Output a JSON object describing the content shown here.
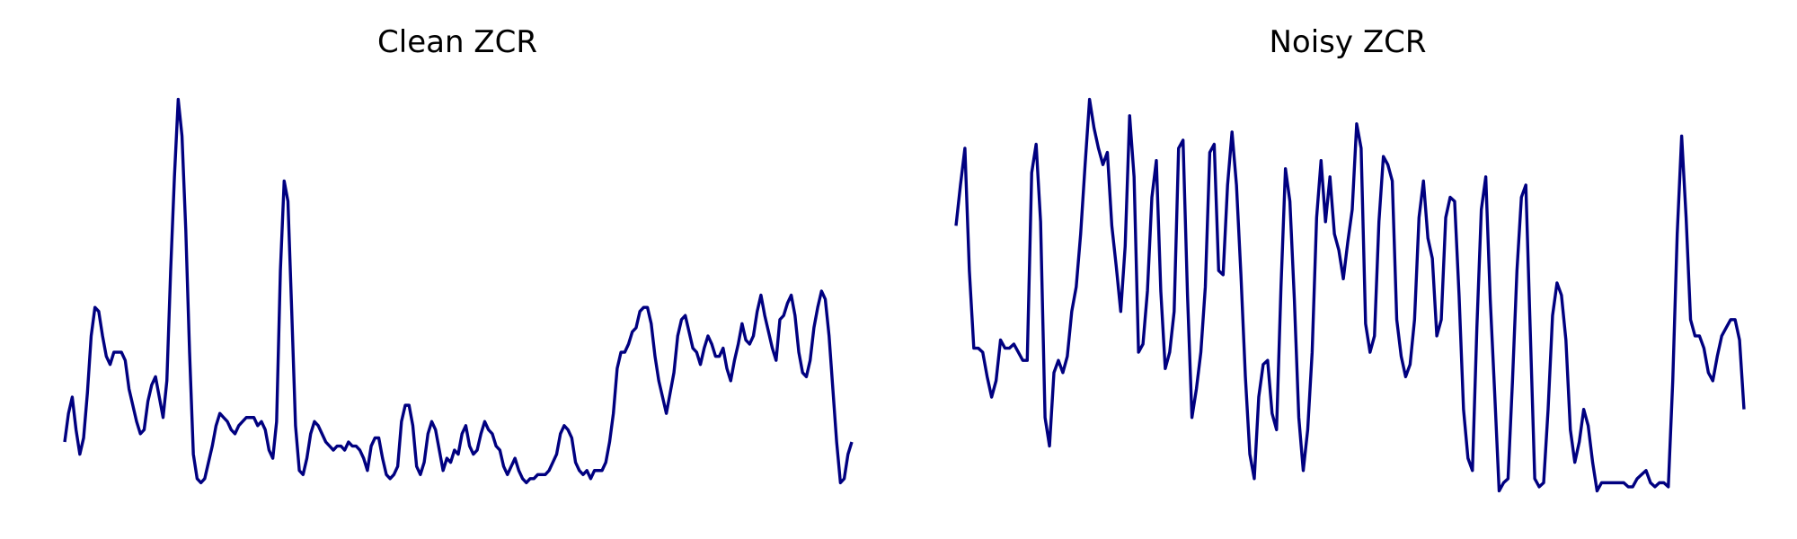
{
  "figure": {
    "panels": [
      {
        "title": "Clean ZCR"
      },
      {
        "title": "Noisy ZCR"
      }
    ]
  },
  "chart_data": [
    {
      "type": "line",
      "title": "Clean ZCR",
      "xlabel": "",
      "ylabel": "",
      "axes_visible": false,
      "grid": false,
      "color": "#000080",
      "ylim": [
        0,
        1
      ],
      "values": [
        0.13,
        0.2,
        0.24,
        0.16,
        0.1,
        0.14,
        0.25,
        0.39,
        0.46,
        0.45,
        0.39,
        0.34,
        0.32,
        0.35,
        0.35,
        0.35,
        0.33,
        0.26,
        0.22,
        0.18,
        0.15,
        0.16,
        0.23,
        0.27,
        0.29,
        0.24,
        0.19,
        0.28,
        0.55,
        0.78,
        0.97,
        0.88,
        0.65,
        0.35,
        0.1,
        0.04,
        0.03,
        0.04,
        0.08,
        0.12,
        0.17,
        0.2,
        0.19,
        0.18,
        0.16,
        0.15,
        0.17,
        0.18,
        0.19,
        0.19,
        0.19,
        0.17,
        0.18,
        0.16,
        0.11,
        0.09,
        0.18,
        0.55,
        0.77,
        0.72,
        0.45,
        0.17,
        0.06,
        0.05,
        0.09,
        0.15,
        0.18,
        0.17,
        0.15,
        0.13,
        0.12,
        0.11,
        0.12,
        0.12,
        0.11,
        0.13,
        0.12,
        0.12,
        0.11,
        0.09,
        0.06,
        0.12,
        0.14,
        0.14,
        0.09,
        0.05,
        0.04,
        0.05,
        0.07,
        0.18,
        0.22,
        0.22,
        0.17,
        0.07,
        0.05,
        0.08,
        0.15,
        0.18,
        0.16,
        0.11,
        0.06,
        0.09,
        0.08,
        0.11,
        0.1,
        0.15,
        0.17,
        0.12,
        0.1,
        0.11,
        0.15,
        0.18,
        0.16,
        0.15,
        0.12,
        0.11,
        0.07,
        0.05,
        0.07,
        0.09,
        0.06,
        0.04,
        0.03,
        0.04,
        0.04,
        0.05,
        0.05,
        0.05,
        0.06,
        0.08,
        0.1,
        0.15,
        0.17,
        0.16,
        0.14,
        0.08,
        0.06,
        0.05,
        0.06,
        0.04,
        0.06,
        0.06,
        0.06,
        0.08,
        0.13,
        0.2,
        0.31,
        0.35,
        0.35,
        0.37,
        0.4,
        0.41,
        0.45,
        0.46,
        0.46,
        0.42,
        0.34,
        0.28,
        0.24,
        0.2,
        0.25,
        0.3,
        0.39,
        0.43,
        0.44,
        0.4,
        0.36,
        0.35,
        0.32,
        0.36,
        0.39,
        0.37,
        0.34,
        0.34,
        0.36,
        0.31,
        0.28,
        0.33,
        0.37,
        0.42,
        0.38,
        0.37,
        0.39,
        0.45,
        0.49,
        0.44,
        0.4,
        0.36,
        0.33,
        0.43,
        0.44,
        0.47,
        0.49,
        0.44,
        0.35,
        0.3,
        0.29,
        0.33,
        0.41,
        0.46,
        0.5,
        0.48,
        0.39,
        0.26,
        0.13,
        0.03,
        0.04,
        0.1,
        0.13
      ]
    },
    {
      "type": "line",
      "title": "Noisy ZCR",
      "xlabel": "",
      "ylabel": "",
      "axes_visible": false,
      "grid": false,
      "color": "#000080",
      "ylim": [
        0,
        1
      ],
      "values": [
        0.66,
        0.76,
        0.85,
        0.55,
        0.36,
        0.36,
        0.35,
        0.29,
        0.24,
        0.28,
        0.38,
        0.36,
        0.36,
        0.37,
        0.35,
        0.33,
        0.33,
        0.79,
        0.86,
        0.67,
        0.19,
        0.12,
        0.3,
        0.33,
        0.3,
        0.34,
        0.45,
        0.51,
        0.64,
        0.81,
        0.97,
        0.9,
        0.85,
        0.81,
        0.84,
        0.66,
        0.56,
        0.45,
        0.61,
        0.93,
        0.78,
        0.35,
        0.37,
        0.5,
        0.73,
        0.82,
        0.5,
        0.31,
        0.35,
        0.45,
        0.85,
        0.87,
        0.49,
        0.19,
        0.26,
        0.35,
        0.51,
        0.84,
        0.86,
        0.55,
        0.54,
        0.76,
        0.89,
        0.76,
        0.54,
        0.29,
        0.1,
        0.04,
        0.24,
        0.32,
        0.33,
        0.2,
        0.16,
        0.51,
        0.8,
        0.72,
        0.48,
        0.19,
        0.06,
        0.16,
        0.35,
        0.68,
        0.82,
        0.67,
        0.78,
        0.64,
        0.6,
        0.53,
        0.62,
        0.7,
        0.91,
        0.85,
        0.42,
        0.35,
        0.39,
        0.67,
        0.83,
        0.81,
        0.77,
        0.43,
        0.34,
        0.29,
        0.32,
        0.43,
        0.68,
        0.77,
        0.63,
        0.58,
        0.39,
        0.43,
        0.68,
        0.73,
        0.72,
        0.49,
        0.21,
        0.09,
        0.06,
        0.41,
        0.7,
        0.78,
        0.48,
        0.25,
        0.01,
        0.03,
        0.04,
        0.28,
        0.55,
        0.73,
        0.76,
        0.4,
        0.04,
        0.02,
        0.03,
        0.21,
        0.44,
        0.52,
        0.49,
        0.38,
        0.16,
        0.08,
        0.13,
        0.21,
        0.17,
        0.08,
        0.01,
        0.03,
        0.03,
        0.03,
        0.03,
        0.03,
        0.03,
        0.02,
        0.02,
        0.04,
        0.05,
        0.06,
        0.03,
        0.02,
        0.03,
        0.03,
        0.02,
        0.28,
        0.64,
        0.88,
        0.68,
        0.43,
        0.39,
        0.39,
        0.36,
        0.3,
        0.28,
        0.34,
        0.39,
        0.41,
        0.43,
        0.43,
        0.38,
        0.21
      ]
    }
  ]
}
